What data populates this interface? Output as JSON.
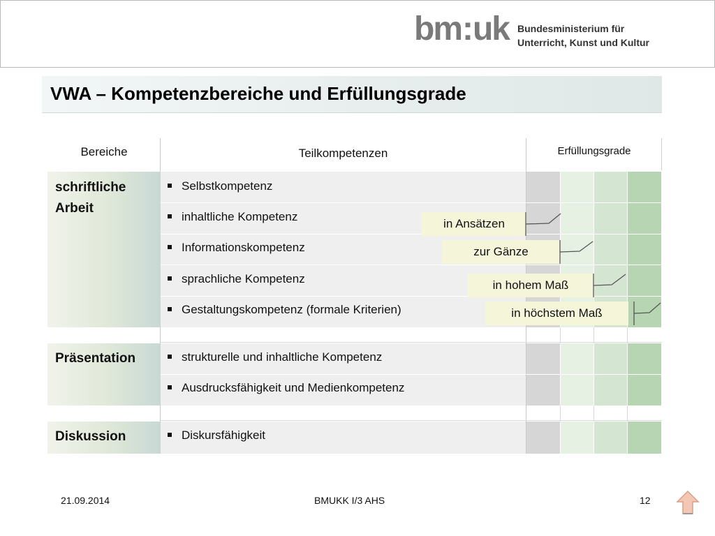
{
  "header": {
    "logo_mark": {
      "bm": "bm",
      "colon": ":",
      "uk": "uk"
    },
    "ministry_line1": "Bundesministerium für",
    "ministry_line2": "Unterricht, Kunst und Kultur"
  },
  "slide": {
    "title": "VWA – Kompetenzbereiche und Erfüllungsgrade"
  },
  "table": {
    "headers": {
      "areas": "Bereiche",
      "subcompetences": "Teilkompetenzen",
      "grades": "Erfüllungsgrade"
    },
    "areas": [
      {
        "name_line1": "schriftliche",
        "name_line2": "Arbeit",
        "items": [
          "Selbstkompetenz",
          "inhaltliche Kompetenz",
          "Informationskompetenz",
          "sprachliche Kompetenz",
          "Gestaltungskompetenz (formale Kriterien)"
        ]
      },
      {
        "name": "Präsentation",
        "items": [
          "strukturelle und  inhaltliche Kompetenz",
          "Ausdrucksfähigkeit und Medienkompetenz"
        ]
      },
      {
        "name": "Diskussion",
        "items": [
          "Diskursfähigkeit"
        ]
      }
    ],
    "grade_labels": [
      "in Ansätzen",
      "zur Gänze",
      "in hohem Maß",
      "in höchstem Maß"
    ],
    "grade_colors": [
      "#d6d6d6",
      "#e6f1e4",
      "#d4e6d1",
      "#b7d5b2"
    ]
  },
  "footer": {
    "date": "21.09.2014",
    "center": "BMUKK I/3 AHS",
    "page": "12"
  },
  "icons": {
    "nav": "home-arrow-icon"
  }
}
